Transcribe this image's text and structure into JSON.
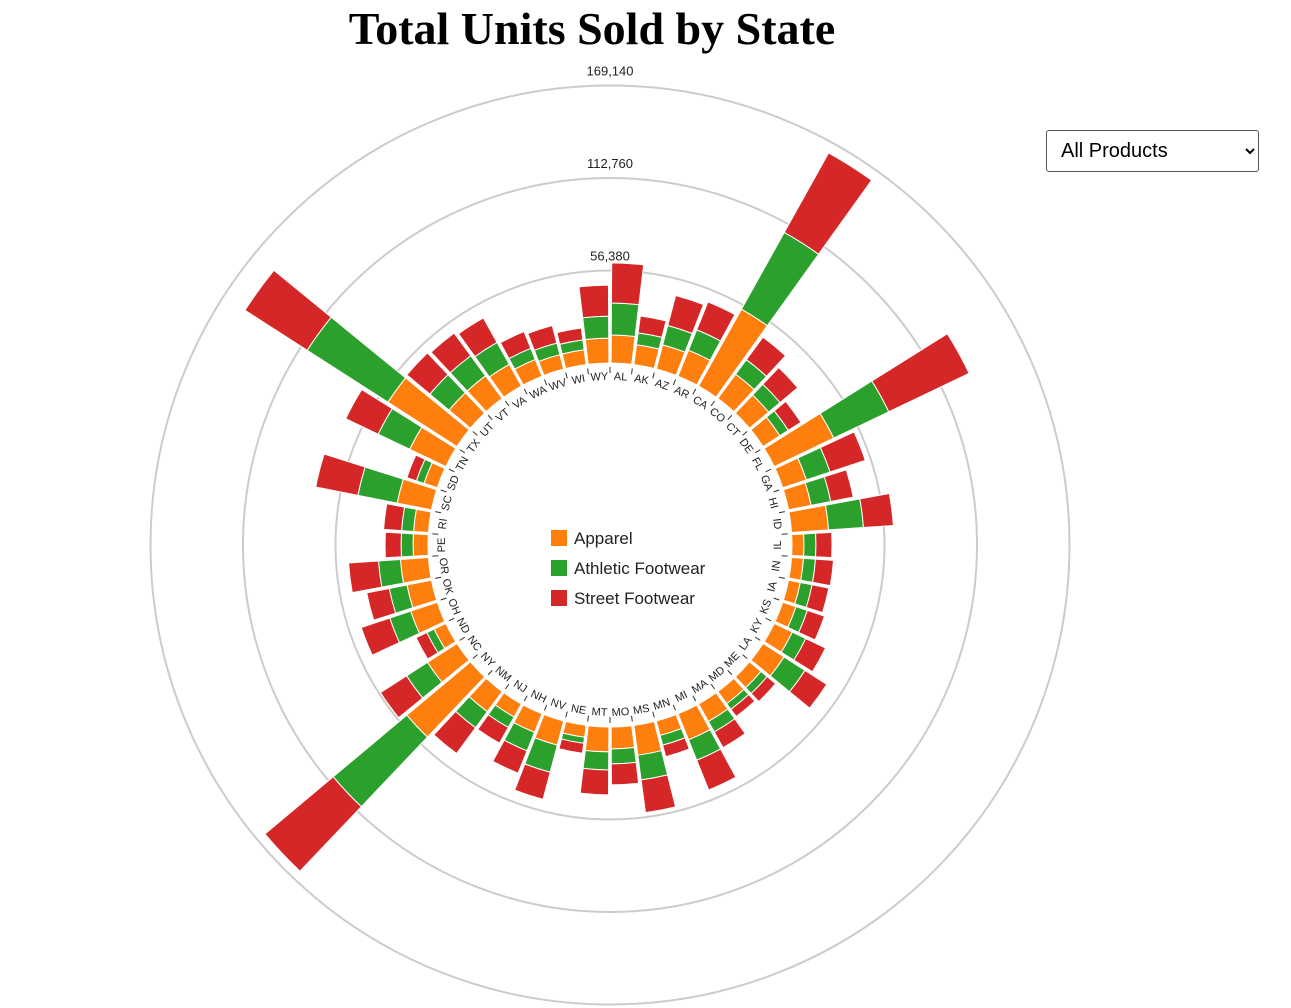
{
  "chart_data": {
    "type": "radial-stacked-bar",
    "title": "Total Units Sold by State",
    "categories": [
      "AL",
      "AK",
      "AZ",
      "AR",
      "CA",
      "CO",
      "CT",
      "DE",
      "FL",
      "GA",
      "HI",
      "ID",
      "IL",
      "IN",
      "IA",
      "KS",
      "KY",
      "LA",
      "ME",
      "MD",
      "MA",
      "MI",
      "MN",
      "MS",
      "MO",
      "MT",
      "NE",
      "NV",
      "NH",
      "NJ",
      "NM",
      "NY",
      "NC",
      "ND",
      "OH",
      "OK",
      "OR",
      "PE",
      "RI",
      "SC",
      "SD",
      "TN",
      "TX",
      "UT",
      "VT",
      "VA",
      "WA",
      "WV",
      "WI",
      "WY"
    ],
    "series": [
      {
        "name": "Apparel",
        "color": "#ff7f0e",
        "values": [
          17100,
          12200,
          15200,
          17100,
          53600,
          18300,
          15200,
          12200,
          40200,
          15200,
          14000,
          22600,
          7300,
          7300,
          7300,
          8500,
          12200,
          15200,
          9100,
          9100,
          12200,
          17100,
          9100,
          18300,
          13400,
          15200,
          7300,
          15200,
          12200,
          9100,
          15200,
          50600,
          21300,
          7900,
          17100,
          15200,
          17100,
          9100,
          9100,
          21300,
          8500,
          24400,
          50000,
          17100,
          17100,
          15200,
          11000,
          9100,
          9100,
          15200
        ]
      },
      {
        "name": "Athletic Footwear",
        "color": "#2ca02c",
        "values": [
          19500,
          7300,
          12200,
          13400,
          53600,
          11000,
          9100,
          6100,
          37200,
          15200,
          12200,
          21300,
          7300,
          7300,
          7300,
          7300,
          9100,
          15200,
          4900,
          4300,
          7300,
          13400,
          6100,
          15200,
          9100,
          11000,
          3700,
          17100,
          12200,
          7300,
          12200,
          58500,
          15200,
          4900,
          13400,
          11000,
          13400,
          7300,
          7300,
          24400,
          4900,
          21300,
          58500,
          15200,
          15200,
          15200,
          7300,
          7300,
          6100,
          13400
        ]
      },
      {
        "name": "Street Footwear",
        "color": "#d62728",
        "values": [
          24400,
          10400,
          18900,
          18300,
          55500,
          17100,
          14000,
          9100,
          54300,
          22600,
          14000,
          18300,
          9800,
          11000,
          10400,
          11000,
          13400,
          15800,
          6700,
          5500,
          11000,
          19500,
          7300,
          20100,
          12800,
          15200,
          6100,
          17100,
          14600,
          11000,
          19500,
          54300,
          18900,
          7300,
          18300,
          14000,
          18300,
          9800,
          11000,
          26200,
          6100,
          21900,
          45100,
          18300,
          17100,
          17100,
          11000,
          11000,
          7300,
          18900
        ]
      }
    ],
    "ylim": [
      0,
      169140
    ],
    "yticks": [
      {
        "value": 56380,
        "label": "56,380"
      },
      {
        "value": 112760,
        "label": "112,760"
      },
      {
        "value": 169140,
        "label": "169,140"
      }
    ],
    "grid": true
  },
  "filter": {
    "selected": "All Products"
  }
}
